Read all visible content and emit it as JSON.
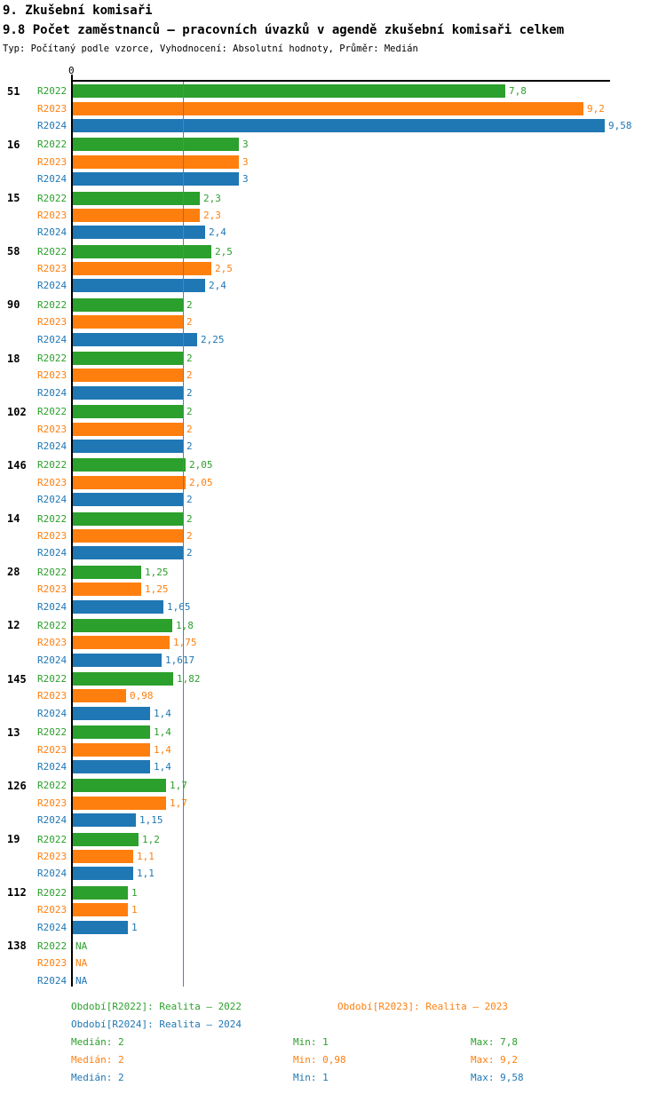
{
  "title1": "9. Zkušební komisaři",
  "title2": "9.8 Počet zaměstnanců – pracovních úvazků v agendě zkušební komisaři celkem",
  "subtitle": "Typ: Počítaný podle vzorce, Vyhodnocení: Absolutní hodnoty, Průměr: Medián",
  "colors": {
    "r2022": "#2CA02C",
    "r2023": "#FF7F0E",
    "r2024": "#1F77B4",
    "median_line": "#3C8ABE",
    "axis": "#000000"
  },
  "chart_data": {
    "type": "bar",
    "orientation": "horizontal",
    "title": "9.8 Počet zaměstnanců – pracovních úvazků v agendě zkušební komisaři celkem",
    "xlabel": "",
    "ylabel": "",
    "x_axis": {
      "tick": "0",
      "min": 0,
      "max_visible": 9.68,
      "grid": false
    },
    "median_line_value": 2,
    "series_labels": [
      "R2022",
      "R2023",
      "R2024"
    ],
    "groups": [
      {
        "id": "51",
        "values": [
          7.8,
          9.2,
          9.58
        ],
        "labels": [
          "7,8",
          "9,2",
          "9,58"
        ]
      },
      {
        "id": "16",
        "values": [
          3,
          3,
          3
        ],
        "labels": [
          "3",
          "3",
          "3"
        ]
      },
      {
        "id": "15",
        "values": [
          2.3,
          2.3,
          2.4
        ],
        "labels": [
          "2,3",
          "2,3",
          "2,4"
        ]
      },
      {
        "id": "58",
        "values": [
          2.5,
          2.5,
          2.4
        ],
        "labels": [
          "2,5",
          "2,5",
          "2,4"
        ]
      },
      {
        "id": "90",
        "values": [
          2,
          2,
          2.25
        ],
        "labels": [
          "2",
          "2",
          "2,25"
        ]
      },
      {
        "id": "18",
        "values": [
          2,
          2,
          2
        ],
        "labels": [
          "2",
          "2",
          "2"
        ]
      },
      {
        "id": "102",
        "values": [
          2,
          2,
          2
        ],
        "labels": [
          "2",
          "2",
          "2"
        ]
      },
      {
        "id": "146",
        "values": [
          2.05,
          2.05,
          2
        ],
        "labels": [
          "2,05",
          "2,05",
          "2"
        ]
      },
      {
        "id": "14",
        "values": [
          2,
          2,
          2
        ],
        "labels": [
          "2",
          "2",
          "2"
        ]
      },
      {
        "id": "28",
        "values": [
          1.25,
          1.25,
          1.65
        ],
        "labels": [
          "1,25",
          "1,25",
          "1,65"
        ]
      },
      {
        "id": "12",
        "values": [
          1.8,
          1.75,
          1.617
        ],
        "labels": [
          "1,8",
          "1,75",
          "1,617"
        ]
      },
      {
        "id": "145",
        "values": [
          1.82,
          0.98,
          1.4
        ],
        "labels": [
          "1,82",
          "0,98",
          "1,4"
        ]
      },
      {
        "id": "13",
        "values": [
          1.4,
          1.4,
          1.4
        ],
        "labels": [
          "1,4",
          "1,4",
          "1,4"
        ]
      },
      {
        "id": "126",
        "values": [
          1.7,
          1.7,
          1.15
        ],
        "labels": [
          "1,7",
          "1,7",
          "1,15"
        ]
      },
      {
        "id": "19",
        "values": [
          1.2,
          1.1,
          1.1
        ],
        "labels": [
          "1,2",
          "1,1",
          "1,1"
        ]
      },
      {
        "id": "112",
        "values": [
          1,
          1,
          1
        ],
        "labels": [
          "1",
          "1",
          "1"
        ]
      },
      {
        "id": "138",
        "values": [
          null,
          null,
          null
        ],
        "labels": [
          "NA",
          "NA",
          "NA"
        ]
      }
    ]
  },
  "legend": {
    "periods": [
      {
        "series": "r2022",
        "label": "Období[R2022]: Realita – 2022"
      },
      {
        "series": "r2023",
        "label": "Období[R2023]: Realita – 2023"
      },
      {
        "series": "r2024",
        "label": "Období[R2024]: Realita – 2024"
      }
    ],
    "stats": [
      {
        "series": "r2022",
        "median": "Medián: 2",
        "min": "Min: 1",
        "max": "Max: 7,8"
      },
      {
        "series": "r2023",
        "median": "Medián: 2",
        "min": "Min: 0,98",
        "max": "Max: 9,2"
      },
      {
        "series": "r2024",
        "median": "Medián: 2",
        "min": "Min: 1",
        "max": "Max: 9,58"
      }
    ]
  }
}
